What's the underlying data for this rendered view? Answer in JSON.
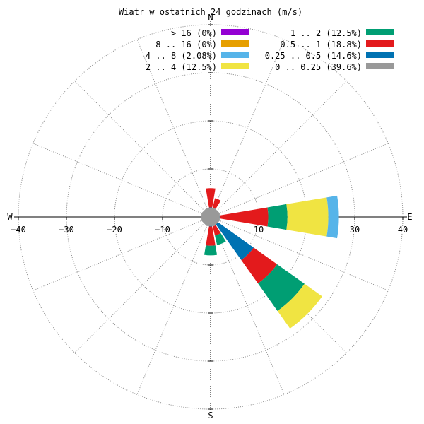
{
  "chart_data": {
    "type": "windrose",
    "title": "Wiatr w ostatnich 24 godzinach (m/s)",
    "compass": {
      "north": "N",
      "south": "S",
      "east": "E",
      "west": "W"
    },
    "radial_max": 40,
    "ticks": [
      -40,
      -30,
      -20,
      -10,
      10,
      20,
      30,
      40
    ],
    "tick_labels": [
      "−40",
      "−30",
      "−20",
      "−10",
      "10",
      "20",
      "30",
      "40"
    ],
    "grid": true,
    "legend": {
      "placement": "top",
      "left_column": [
        {
          "label": "> 16 (0%)",
          "color": "#9400d3"
        },
        {
          "label": "8 .. 16 (0%)",
          "color": "#e69f00"
        },
        {
          "label": "4 .. 8 (2.08%)",
          "color": "#56b4e9"
        },
        {
          "label": "2 .. 4 (12.5%)",
          "color": "#f0e442"
        }
      ],
      "right_column": [
        {
          "label": "1 .. 2 (12.5%)",
          "color": "#009e73"
        },
        {
          "label": "0.5 .. 1 (18.8%)",
          "color": "#e31a1c"
        },
        {
          "label": "0.25 .. 0.5 (14.6%)",
          "color": "#0072b2"
        },
        {
          "label": "0 .. 0.25 (39.6%)",
          "color": "#999999"
        }
      ]
    },
    "calm": {
      "label": "0 .. 0.25",
      "value": 2,
      "color": "#999999"
    },
    "bands": [
      {
        "name": "0.25 .. 0.5",
        "color": "#0072b2"
      },
      {
        "name": "0.5 .. 1",
        "color": "#e31a1c"
      },
      {
        "name": "1 .. 2",
        "color": "#009e73"
      },
      {
        "name": "2 .. 4",
        "color": "#f0e442"
      },
      {
        "name": "4 .. 8",
        "color": "#56b4e9"
      }
    ],
    "directions": [
      {
        "dir": "N",
        "bearing": 0,
        "values": [
          2,
          4,
          0,
          0,
          0
        ]
      },
      {
        "dir": "NNE",
        "bearing": 22.5,
        "values": [
          2,
          2,
          0,
          0,
          0
        ]
      },
      {
        "dir": "E",
        "bearing": 90,
        "values": [
          2,
          10,
          4,
          8.5,
          2.2
        ]
      },
      {
        "dir": "SSE",
        "bearing": 157.5,
        "values": [
          2,
          2,
          2,
          0,
          0
        ]
      },
      {
        "dir": "SE",
        "bearing": 135,
        "values": [
          11,
          6,
          7,
          4.5,
          0
        ]
      },
      {
        "dir": "S",
        "bearing": 180,
        "values": [
          2,
          4,
          2,
          0,
          0
        ]
      }
    ]
  }
}
